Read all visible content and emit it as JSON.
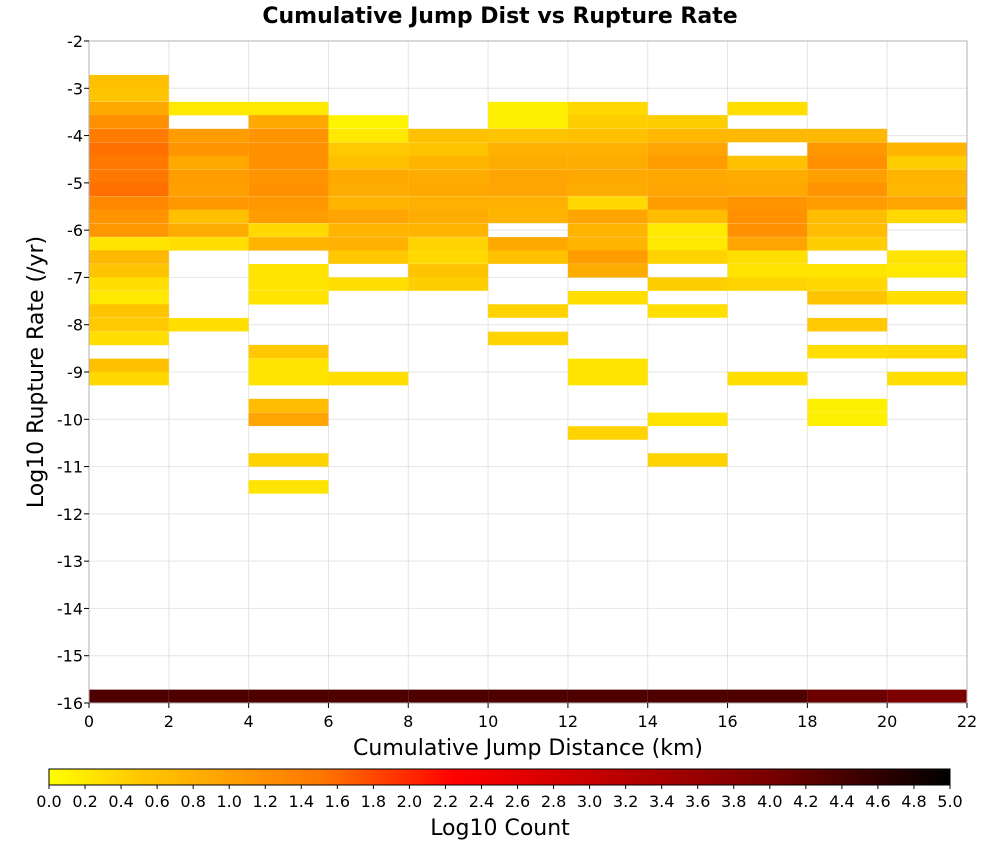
{
  "chart_data": {
    "type": "heatmap",
    "title": "Cumulative Jump Dist vs Rupture Rate",
    "xlabel": "Cumulative Jump Distance (km)",
    "ylabel": "Log10 Rupture Rate (/yr)",
    "xlim": [
      0,
      22
    ],
    "ylim": [
      -16,
      -2
    ],
    "x_ticks": [
      0,
      2,
      4,
      6,
      8,
      10,
      12,
      14,
      16,
      18,
      20,
      22
    ],
    "y_ticks": [
      -2,
      -3,
      -4,
      -5,
      -6,
      -7,
      -8,
      -9,
      -10,
      -11,
      -12,
      -13,
      -14,
      -15,
      -16
    ],
    "x_bin_width": 2,
    "y_bin_height": 0.2857,
    "grid": true,
    "colorbar": {
      "label": "Log10 Count",
      "min": 0.0,
      "max": 5.0,
      "ticks": [
        "0.0",
        "0.2",
        "0.4",
        "0.6",
        "0.8",
        "1.0",
        "1.2",
        "1.4",
        "1.6",
        "1.8",
        "2.0",
        "2.2",
        "2.4",
        "2.6",
        "2.8",
        "3.0",
        "3.2",
        "3.4",
        "3.6",
        "3.8",
        "4.0",
        "4.2",
        "4.4",
        "4.6",
        "4.8",
        "5.0"
      ],
      "colormap": [
        "#ffff00",
        "#ffc800",
        "#ff7800",
        "#ff0000",
        "#c80000",
        "#780000",
        "#000000"
      ]
    },
    "columns": [
      {
        "x": 1,
        "cells": [
          [
            -2.86,
            0.6
          ],
          [
            -3.14,
            0.55
          ],
          [
            -3.43,
            0.9
          ],
          [
            -3.71,
            1.2
          ],
          [
            -4.0,
            1.45
          ],
          [
            -4.29,
            1.55
          ],
          [
            -4.57,
            1.5
          ],
          [
            -4.86,
            1.5
          ],
          [
            -5.14,
            1.55
          ],
          [
            -5.43,
            1.3
          ],
          [
            -5.71,
            1.15
          ],
          [
            -6.0,
            1.1
          ],
          [
            -6.29,
            0.25
          ],
          [
            -6.57,
            0.7
          ],
          [
            -6.86,
            0.55
          ],
          [
            -7.14,
            0.3
          ],
          [
            -7.43,
            0.2
          ],
          [
            -7.71,
            0.55
          ],
          [
            -8.0,
            0.5
          ],
          [
            -8.29,
            0.3
          ],
          [
            -8.86,
            0.6
          ],
          [
            -9.14,
            0.35
          ],
          [
            -15.86,
            4.35
          ]
        ]
      },
      {
        "x": 3,
        "cells": [
          [
            -3.43,
            0.2
          ],
          [
            -4.0,
            1.05
          ],
          [
            -4.29,
            1.15
          ],
          [
            -4.57,
            0.9
          ],
          [
            -4.86,
            1.05
          ],
          [
            -5.14,
            1.0
          ],
          [
            -5.43,
            1.1
          ],
          [
            -5.71,
            0.6
          ],
          [
            -6.0,
            0.85
          ],
          [
            -6.29,
            0.3
          ],
          [
            -8.0,
            0.3
          ],
          [
            -15.86,
            4.35
          ]
        ]
      },
      {
        "x": 5,
        "cells": [
          [
            -3.43,
            0.2
          ],
          [
            -3.71,
            0.9
          ],
          [
            -4.0,
            1.15
          ],
          [
            -4.29,
            1.2
          ],
          [
            -4.57,
            1.2
          ],
          [
            -4.86,
            1.15
          ],
          [
            -5.14,
            1.2
          ],
          [
            -5.43,
            1.1
          ],
          [
            -5.71,
            1.05
          ],
          [
            -6.0,
            0.35
          ],
          [
            -6.29,
            0.75
          ],
          [
            -6.86,
            0.25
          ],
          [
            -7.14,
            0.25
          ],
          [
            -7.43,
            0.25
          ],
          [
            -8.57,
            0.5
          ],
          [
            -8.86,
            0.25
          ],
          [
            -9.14,
            0.25
          ],
          [
            -9.71,
            0.65
          ],
          [
            -10.0,
            0.95
          ],
          [
            -10.86,
            0.4
          ],
          [
            -11.43,
            0.25
          ],
          [
            -15.86,
            4.35
          ]
        ]
      },
      {
        "x": 7,
        "cells": [
          [
            -3.71,
            0.1
          ],
          [
            -4.0,
            0.2
          ],
          [
            -4.29,
            0.5
          ],
          [
            -4.57,
            0.6
          ],
          [
            -4.86,
            0.9
          ],
          [
            -5.14,
            0.85
          ],
          [
            -5.43,
            0.75
          ],
          [
            -5.71,
            0.95
          ],
          [
            -6.0,
            0.75
          ],
          [
            -6.29,
            0.8
          ],
          [
            -6.57,
            0.5
          ],
          [
            -7.14,
            0.3
          ],
          [
            -9.14,
            0.3
          ],
          [
            -15.86,
            4.35
          ]
        ]
      },
      {
        "x": 9,
        "cells": [
          [
            -4.0,
            0.6
          ],
          [
            -4.29,
            0.55
          ],
          [
            -4.57,
            0.75
          ],
          [
            -4.86,
            0.85
          ],
          [
            -5.14,
            0.9
          ],
          [
            -5.43,
            0.8
          ],
          [
            -5.71,
            0.85
          ],
          [
            -6.0,
            0.75
          ],
          [
            -6.29,
            0.4
          ],
          [
            -6.57,
            0.35
          ],
          [
            -6.86,
            0.55
          ],
          [
            -7.14,
            0.45
          ],
          [
            -15.86,
            4.35
          ]
        ]
      },
      {
        "x": 11,
        "cells": [
          [
            -3.43,
            0.15
          ],
          [
            -3.71,
            0.15
          ],
          [
            -4.0,
            0.55
          ],
          [
            -4.29,
            0.8
          ],
          [
            -4.57,
            0.85
          ],
          [
            -4.86,
            0.95
          ],
          [
            -5.14,
            0.95
          ],
          [
            -5.43,
            0.8
          ],
          [
            -5.71,
            0.75
          ],
          [
            -6.29,
            0.9
          ],
          [
            -6.57,
            0.6
          ],
          [
            -7.71,
            0.4
          ],
          [
            -8.29,
            0.4
          ],
          [
            -15.86,
            4.35
          ]
        ]
      },
      {
        "x": 13,
        "cells": [
          [
            -3.43,
            0.35
          ],
          [
            -3.71,
            0.45
          ],
          [
            -4.0,
            0.6
          ],
          [
            -4.29,
            0.8
          ],
          [
            -4.57,
            0.85
          ],
          [
            -4.86,
            0.9
          ],
          [
            -5.14,
            0.85
          ],
          [
            -5.43,
            0.35
          ],
          [
            -5.71,
            0.95
          ],
          [
            -6.0,
            0.75
          ],
          [
            -6.29,
            0.75
          ],
          [
            -6.57,
            1.05
          ],
          [
            -6.86,
            0.85
          ],
          [
            -7.43,
            0.3
          ],
          [
            -8.86,
            0.25
          ],
          [
            -9.14,
            0.25
          ],
          [
            -10.29,
            0.4
          ],
          [
            -15.86,
            4.35
          ]
        ]
      },
      {
        "x": 15,
        "cells": [
          [
            -3.71,
            0.45
          ],
          [
            -4.0,
            0.7
          ],
          [
            -4.29,
            0.95
          ],
          [
            -4.57,
            1.05
          ],
          [
            -4.86,
            0.9
          ],
          [
            -5.14,
            0.95
          ],
          [
            -5.43,
            1.05
          ],
          [
            -5.71,
            0.65
          ],
          [
            -6.0,
            0.2
          ],
          [
            -6.29,
            0.2
          ],
          [
            -6.57,
            0.4
          ],
          [
            -7.14,
            0.45
          ],
          [
            -7.71,
            0.3
          ],
          [
            -10.0,
            0.25
          ],
          [
            -10.86,
            0.4
          ],
          [
            -15.86,
            4.35
          ]
        ]
      },
      {
        "x": 17,
        "cells": [
          [
            -3.43,
            0.3
          ],
          [
            -4.0,
            0.7
          ],
          [
            -4.57,
            0.6
          ],
          [
            -4.86,
            0.85
          ],
          [
            -5.14,
            0.9
          ],
          [
            -5.43,
            1.15
          ],
          [
            -5.71,
            1.2
          ],
          [
            -6.0,
            1.2
          ],
          [
            -6.29,
            0.95
          ],
          [
            -6.57,
            0.3
          ],
          [
            -6.86,
            0.25
          ],
          [
            -7.14,
            0.4
          ],
          [
            -9.14,
            0.3
          ],
          [
            -15.86,
            4.35
          ]
        ]
      },
      {
        "x": 19,
        "cells": [
          [
            -4.0,
            0.7
          ],
          [
            -4.29,
            1.1
          ],
          [
            -4.57,
            1.2
          ],
          [
            -4.86,
            1.0
          ],
          [
            -5.14,
            1.15
          ],
          [
            -5.43,
            1.05
          ],
          [
            -5.71,
            0.65
          ],
          [
            -6.0,
            0.65
          ],
          [
            -6.29,
            0.45
          ],
          [
            -6.86,
            0.25
          ],
          [
            -7.14,
            0.35
          ],
          [
            -7.43,
            0.55
          ],
          [
            -8.0,
            0.5
          ],
          [
            -8.57,
            0.3
          ],
          [
            -9.71,
            0.15
          ],
          [
            -10.0,
            0.15
          ],
          [
            -15.86,
            4.1
          ]
        ]
      },
      {
        "x": 21,
        "cells": [
          [
            -4.29,
            0.75
          ],
          [
            -4.57,
            0.45
          ],
          [
            -4.86,
            0.75
          ],
          [
            -5.14,
            0.7
          ],
          [
            -5.43,
            0.95
          ],
          [
            -5.71,
            0.35
          ],
          [
            -6.57,
            0.25
          ],
          [
            -6.86,
            0.2
          ],
          [
            -7.43,
            0.3
          ],
          [
            -8.57,
            0.35
          ],
          [
            -9.14,
            0.3
          ],
          [
            -15.86,
            3.95
          ]
        ]
      }
    ]
  }
}
